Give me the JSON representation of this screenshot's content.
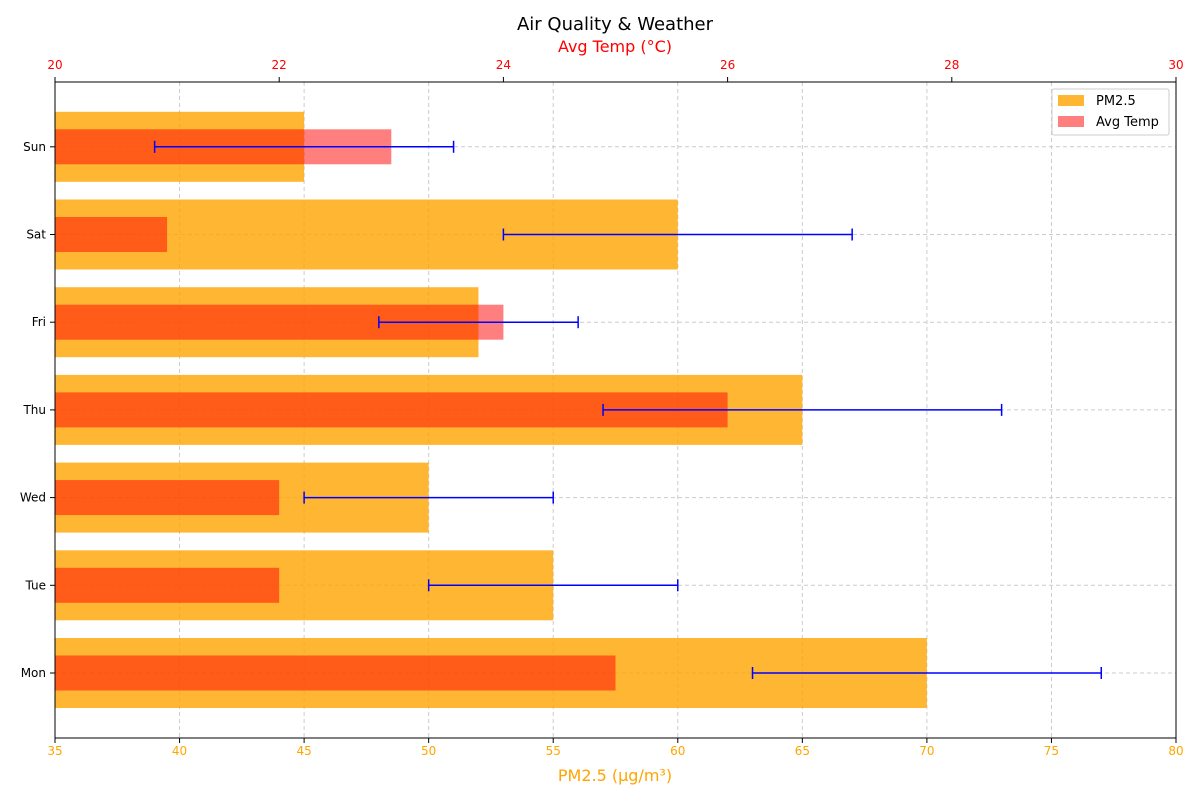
{
  "chart_data": {
    "type": "bar",
    "orientation": "horizontal",
    "title": "Air Quality & Weather",
    "categories": [
      "Mon",
      "Tue",
      "Wed",
      "Thu",
      "Fri",
      "Sat",
      "Sun"
    ],
    "series": [
      {
        "name": "PM2.5",
        "axis": "bottom",
        "color": "#ffa500",
        "values": [
          70,
          55,
          50,
          65,
          52,
          60,
          45
        ]
      },
      {
        "name": "Avg Temp",
        "axis": "top",
        "color": "#ff0000",
        "values": [
          25,
          22,
          22,
          26,
          24,
          21,
          23
        ]
      }
    ],
    "error_bars": {
      "color": "#0000ff",
      "axis": "bottom",
      "ranges": [
        [
          63,
          77
        ],
        [
          50,
          60
        ],
        [
          45,
          55
        ],
        [
          57,
          73
        ],
        [
          48,
          56
        ],
        [
          53,
          67
        ],
        [
          39,
          51
        ]
      ]
    },
    "x_bottom": {
      "label": "PM2.5 (µg/m³)",
      "color": "#ffa500",
      "range": [
        35,
        80
      ],
      "ticks": [
        35,
        40,
        45,
        50,
        55,
        60,
        65,
        70,
        75,
        80
      ]
    },
    "x_top": {
      "label": "Avg Temp (°C)",
      "color": "#ff0000",
      "range": [
        20,
        30
      ],
      "ticks": [
        20,
        22,
        24,
        26,
        28,
        30
      ]
    },
    "grid": true,
    "legend_position": "top-right"
  }
}
